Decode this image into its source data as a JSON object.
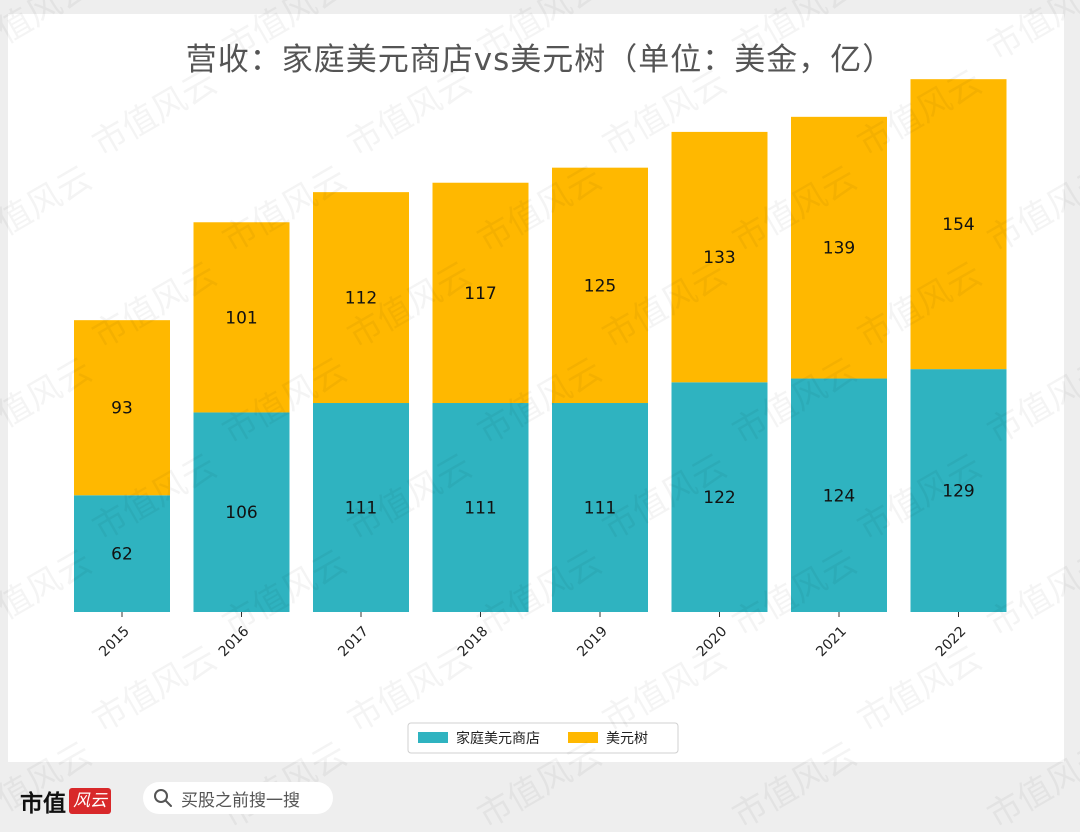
{
  "footer": {
    "brand": "市值",
    "brand_mark": "风云",
    "search_placeholder": "买股之前搜一搜"
  },
  "watermark_text": "市值风云",
  "colors": {
    "series1": "#2fb3c0",
    "series2": "#ffb800",
    "title": "#555555"
  },
  "chart_data": {
    "type": "bar",
    "stacked": true,
    "title": "营收：家庭美元商店vs美元树（单位：美金，亿）",
    "xlabel": "",
    "ylabel": "",
    "categories": [
      "2015",
      "2016",
      "2017",
      "2018",
      "2019",
      "2020",
      "2021",
      "2022"
    ],
    "series": [
      {
        "name": "家庭美元商店",
        "color": "#2fb3c0",
        "values": [
          62,
          106,
          111,
          111,
          111,
          122,
          124,
          129
        ]
      },
      {
        "name": "美元树",
        "color": "#ffb800",
        "values": [
          93,
          101,
          112,
          117,
          125,
          133,
          139,
          154
        ]
      }
    ],
    "ylim": [
      0,
      290
    ],
    "grid": false,
    "legend": "bottom-center"
  }
}
